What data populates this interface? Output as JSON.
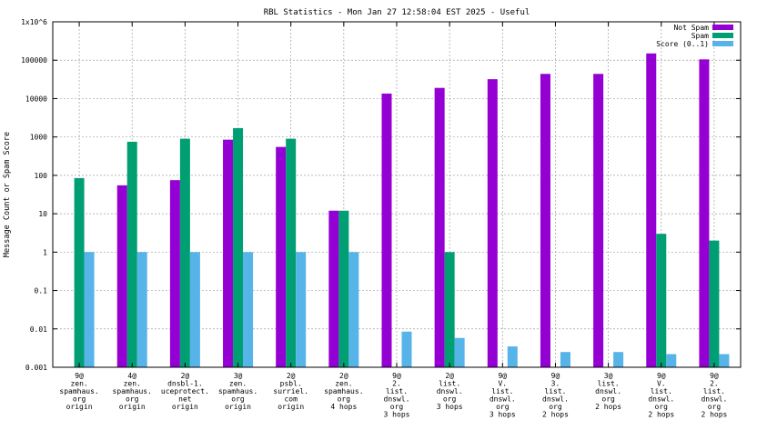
{
  "chart_data": {
    "type": "bar",
    "title": "RBL Statistics - Mon Jan 27 12:58:04 EST 2025 - Useful",
    "ylabel": "Message Count or Spam Score",
    "xlabel": "",
    "yscale": "log",
    "ylim": [
      0.001,
      1000000
    ],
    "yticks": [
      {
        "value": 0.001,
        "label": "0.001"
      },
      {
        "value": 0.01,
        "label": "0.01"
      },
      {
        "value": 0.1,
        "label": "0.1"
      },
      {
        "value": 1,
        "label": "1"
      },
      {
        "value": 10,
        "label": "10"
      },
      {
        "value": 100,
        "label": "100"
      },
      {
        "value": 1000,
        "label": "1000"
      },
      {
        "value": 10000,
        "label": "10000"
      },
      {
        "value": 100000,
        "label": "100000"
      },
      {
        "value": 1000000,
        "label": "1x10^6"
      }
    ],
    "legend_position": "top-right",
    "grid": true,
    "categories": [
      [
        "9@",
        "zen.",
        "spamhaus.",
        "org",
        "origin"
      ],
      [
        "4@",
        "zen.",
        "spamhaus.",
        "org",
        "origin"
      ],
      [
        "2@",
        "dnsbl-1.",
        "uceprotect.",
        "net",
        "origin"
      ],
      [
        "3@",
        "zen.",
        "spamhaus.",
        "org",
        "origin"
      ],
      [
        "2@",
        "psbl.",
        "surriel.",
        "com",
        "origin"
      ],
      [
        "2@",
        "zen.",
        "spamhaus.",
        "org",
        "4 hops"
      ],
      [
        "9@",
        "2.",
        "list.",
        "dnswl.",
        "org",
        "3 hops"
      ],
      [
        "2@",
        "list.",
        "dnswl.",
        "org",
        "3 hops"
      ],
      [
        "9@",
        "V.",
        "list.",
        "dnswl.",
        "org",
        "3 hops"
      ],
      [
        "9@",
        "3.",
        "list.",
        "dnswl.",
        "org",
        "2 hops"
      ],
      [
        "3@",
        "list.",
        "dnswl.",
        "org",
        "2 hops"
      ],
      [
        "9@",
        "V.",
        "list.",
        "dnswl.",
        "org",
        "2 hops"
      ],
      [
        "9@",
        "2.",
        "list.",
        "dnswl.",
        "org",
        "2 hops"
      ]
    ],
    "series": [
      {
        "name": "Not Spam",
        "color": "#9400d3",
        "values": [
          null,
          55,
          75,
          850,
          550,
          12,
          13500,
          19000,
          32000,
          44000,
          44000,
          150000,
          105000
        ]
      },
      {
        "name": "Spam",
        "color": "#009e73",
        "values": [
          85,
          750,
          900,
          1700,
          900,
          12,
          null,
          1,
          null,
          null,
          null,
          3,
          2
        ]
      },
      {
        "name": "Score (0..1)",
        "color": "#56b4e9",
        "values": [
          1,
          1,
          1,
          1,
          1,
          1,
          0.0085,
          0.0058,
          0.0035,
          0.0025,
          0.0025,
          0.0022,
          0.0022
        ]
      }
    ]
  }
}
